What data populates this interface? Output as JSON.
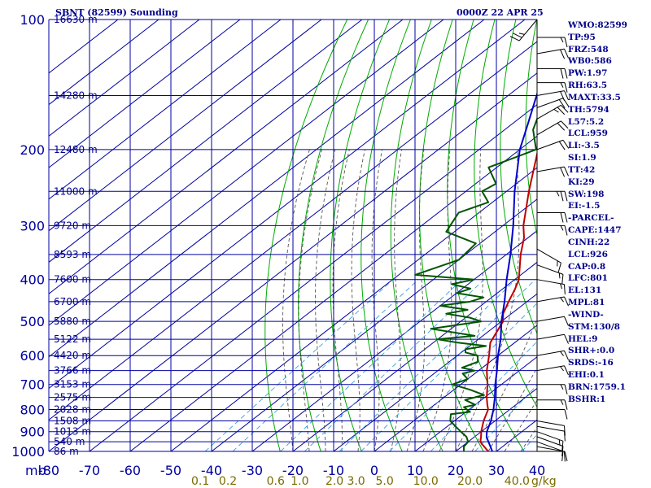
{
  "header": {
    "title": "SBNT (82599) Sounding",
    "timestamp": "0000Z 22 APR 25"
  },
  "indices": [
    "WMO:82599",
    "TP:95",
    "FRZ:548",
    "WB0:586",
    "PW:1.97",
    "RH:63.5",
    "MAXT:33.5",
    "TH:5794",
    "L57:5.2",
    "LCL:959",
    "LI:-3.5",
    "SI:1.9",
    "TT:42",
    "KI:29",
    "SW:198",
    "EI:-1.5",
    "-PARCEL-",
    "CAPE:1447",
    "CINH:22",
    "LCL:926",
    "CAP:0.8",
    "LFC:801",
    "EL:131",
    "MPL:81",
    "-WIND-",
    "STM:130/8",
    "HEL:9",
    "SHR+:0.0",
    "SRDS:-16",
    "EHI:0.1",
    "BRN:1759.1",
    "BSHR:1"
  ],
  "colors": {
    "grid": "#0000a0",
    "dry_adiabat": "#00aa00",
    "moist_adiabat": "#555555",
    "mixing_ratio": "#3aa0e0",
    "temperature": "#c00000",
    "dewpoint": "#005500",
    "parcel": "#0000cc",
    "text": "#00008b",
    "mixing_label": "#7a6a00",
    "wind": "#000000"
  },
  "chart_data": {
    "type": "line",
    "chart": "skew-T log-P",
    "y_axis": {
      "unit_label": "mb",
      "scale": "log",
      "ylim": [
        1000,
        100
      ],
      "ticks": [
        100,
        200,
        300,
        400,
        500,
        600,
        700,
        800,
        900,
        1000
      ],
      "tick_labels": [
        "100",
        "200",
        "300",
        "400",
        "500",
        "600",
        "700",
        "800",
        "900",
        "1000"
      ]
    },
    "x_axis": {
      "xlim": [
        -80,
        40
      ],
      "ticks": [
        -80,
        -70,
        -60,
        -50,
        -40,
        -30,
        -20,
        -10,
        0,
        10,
        20,
        30,
        40
      ],
      "tick_labels": [
        "-80",
        "-70",
        "-60",
        "-50",
        "-40",
        "-30",
        "-20",
        "-10",
        "0",
        "10",
        "20",
        "30",
        "40"
      ]
    },
    "height_labels": [
      {
        "p": 100,
        "text": "16630 m"
      },
      {
        "p": 150,
        "text": "14280 m"
      },
      {
        "p": 200,
        "text": "12480 m"
      },
      {
        "p": 250,
        "text": "11000 m"
      },
      {
        "p": 300,
        "text": "9720 m"
      },
      {
        "p": 350,
        "text": "8593 m"
      },
      {
        "p": 400,
        "text": "7600 m"
      },
      {
        "p": 450,
        "text": "6700 m"
      },
      {
        "p": 500,
        "text": "5880 m"
      },
      {
        "p": 550,
        "text": "5122 m"
      },
      {
        "p": 600,
        "text": "4420 m"
      },
      {
        "p": 650,
        "text": "3766 m"
      },
      {
        "p": 700,
        "text": "3153 m"
      },
      {
        "p": 750,
        "text": "2575 m"
      },
      {
        "p": 800,
        "text": "2028 m"
      },
      {
        "p": 850,
        "text": "1508 m"
      },
      {
        "p": 900,
        "text": "1013 m"
      },
      {
        "p": 950,
        "text": "540 m"
      },
      {
        "p": 1000,
        "text": "86 m"
      }
    ],
    "mixing_ratios": [
      {
        "w": 0.1,
        "label": "0.1"
      },
      {
        "w": 0.2,
        "label": "0.2"
      },
      {
        "w": 0.6,
        "label": "0.6"
      },
      {
        "w": 1.0,
        "label": "1.0"
      },
      {
        "w": 2.0,
        "label": "2.0"
      },
      {
        "w": 3.0,
        "label": "3.0"
      },
      {
        "w": 5.0,
        "label": "5.0"
      },
      {
        "w": 10.0,
        "label": "10.0"
      },
      {
        "w": 20.0,
        "label": "20.0"
      },
      {
        "w": 40.0,
        "label": "40.0"
      }
    ],
    "mixing_unit_label": "g/kg",
    "series": [
      {
        "key": "temperature",
        "points": [
          [
            1000,
            28.0
          ],
          [
            980,
            26.0
          ],
          [
            960,
            24.0
          ],
          [
            950,
            23.0
          ],
          [
            925,
            21.6
          ],
          [
            900,
            20.0
          ],
          [
            850,
            17.2
          ],
          [
            800,
            14.7
          ],
          [
            780,
            13.0
          ],
          [
            750,
            10.5
          ],
          [
            700,
            6.6
          ],
          [
            650,
            2.0
          ],
          [
            600,
            -2.2
          ],
          [
            560,
            -6.0
          ],
          [
            500,
            -9.6
          ],
          [
            480,
            -12.0
          ],
          [
            450,
            -14.5
          ],
          [
            420,
            -17.0
          ],
          [
            400,
            -19.0
          ],
          [
            350,
            -26.5
          ],
          [
            320,
            -31.0
          ],
          [
            300,
            -35.0
          ],
          [
            250,
            -44.5
          ],
          [
            200,
            -55.5
          ],
          [
            175,
            -62.0
          ],
          [
            150,
            -68.0
          ],
          [
            130,
            -74.0
          ],
          [
            115,
            -79.0
          ],
          [
            100,
            -82.0
          ]
        ]
      },
      {
        "key": "dewpoint",
        "points": [
          [
            1000,
            22.0
          ],
          [
            975,
            20.5
          ],
          [
            950,
            20.0
          ],
          [
            925,
            18.0
          ],
          [
            900,
            15.0
          ],
          [
            875,
            12.0
          ],
          [
            850,
            9.0
          ],
          [
            820,
            7.0
          ],
          [
            810,
            11.0
          ],
          [
            790,
            8.0
          ],
          [
            780,
            10.0
          ],
          [
            760,
            6.0
          ],
          [
            740,
            9.0
          ],
          [
            720,
            4.0
          ],
          [
            700,
            -2.0
          ],
          [
            680,
            0.0
          ],
          [
            660,
            -3.0
          ],
          [
            650,
            -1.0
          ],
          [
            640,
            -5.0
          ],
          [
            620,
            -3.0
          ],
          [
            600,
            -5.0
          ],
          [
            590,
            -9.0
          ],
          [
            580,
            -10.0
          ],
          [
            570,
            -6.0
          ],
          [
            560,
            -14.0
          ],
          [
            550,
            -20.0
          ],
          [
            540,
            -12.0
          ],
          [
            520,
            -25.0
          ],
          [
            500,
            -15.0
          ],
          [
            490,
            -19.0
          ],
          [
            480,
            -26.0
          ],
          [
            470,
            -22.0
          ],
          [
            460,
            -30.0
          ],
          [
            450,
            -24.0
          ],
          [
            440,
            -22.0
          ],
          [
            430,
            -30.0
          ],
          [
            420,
            -28.0
          ],
          [
            410,
            -34.0
          ],
          [
            400,
            -30.0
          ],
          [
            390,
            -46.0
          ],
          [
            360,
            -40.0
          ],
          [
            330,
            -41.0
          ],
          [
            310,
            -52.0
          ],
          [
            300,
            -53.0
          ],
          [
            280,
            -55.0
          ],
          [
            265,
            -51.0
          ],
          [
            250,
            -56.0
          ],
          [
            240,
            -55.0
          ],
          [
            220,
            -62.0
          ],
          [
            200,
            -56.0
          ],
          [
            180,
            -63.0
          ],
          [
            160,
            -68.0
          ],
          [
            145,
            -70.0
          ],
          [
            125,
            -79.0
          ],
          [
            100,
            -82.0
          ]
        ]
      },
      {
        "key": "parcel",
        "points": [
          [
            1000,
            29.0
          ],
          [
            950,
            25.0
          ],
          [
            926,
            23.0
          ],
          [
            900,
            21.4
          ],
          [
            850,
            19.0
          ],
          [
            800,
            16.0
          ],
          [
            750,
            12.5
          ],
          [
            700,
            8.5
          ],
          [
            650,
            4.5
          ],
          [
            600,
            0.0
          ],
          [
            550,
            -4.5
          ],
          [
            500,
            -10.0
          ],
          [
            450,
            -15.5
          ],
          [
            400,
            -22.0
          ],
          [
            350,
            -29.0
          ],
          [
            300,
            -37.5
          ],
          [
            250,
            -48.0
          ],
          [
            200,
            -60.0
          ],
          [
            175,
            -66.0
          ],
          [
            150,
            -73.0
          ],
          [
            131,
            -79.0
          ],
          [
            100,
            -86.0
          ]
        ]
      }
    ],
    "wind_barbs": [
      {
        "p": 1000,
        "dir": 90,
        "spd": 10
      },
      {
        "p": 975,
        "dir": 100,
        "spd": 10
      },
      {
        "p": 950,
        "dir": 110,
        "spd": 10
      },
      {
        "p": 925,
        "dir": 110,
        "spd": 10
      },
      {
        "p": 900,
        "dir": 110,
        "spd": 15
      },
      {
        "p": 875,
        "dir": 100,
        "spd": 10
      },
      {
        "p": 850,
        "dir": 100,
        "spd": 10
      },
      {
        "p": 800,
        "dir": 90,
        "spd": 10
      },
      {
        "p": 760,
        "dir": 90,
        "spd": 15
      },
      {
        "p": 700,
        "dir": 90,
        "spd": 15
      },
      {
        "p": 650,
        "dir": 80,
        "spd": 15
      },
      {
        "p": 600,
        "dir": 80,
        "spd": 15
      },
      {
        "p": 550,
        "dir": 80,
        "spd": 10
      },
      {
        "p": 500,
        "dir": 80,
        "spd": 10
      },
      {
        "p": 450,
        "dir": 80,
        "spd": 15
      },
      {
        "p": 400,
        "dir": 100,
        "spd": 15
      },
      {
        "p": 370,
        "dir": 110,
        "spd": 15
      },
      {
        "p": 340,
        "dir": 120,
        "spd": 15
      },
      {
        "p": 300,
        "dir": 90,
        "spd": 15
      },
      {
        "p": 280,
        "dir": 90,
        "spd": 20
      },
      {
        "p": 250,
        "dir": 90,
        "spd": 25
      },
      {
        "p": 225,
        "dir": 80,
        "spd": 20
      },
      {
        "p": 200,
        "dir": 70,
        "spd": 20
      },
      {
        "p": 185,
        "dir": 60,
        "spd": 20
      },
      {
        "p": 170,
        "dir": 60,
        "spd": 25
      },
      {
        "p": 160,
        "dir": 70,
        "spd": 20
      },
      {
        "p": 150,
        "dir": 80,
        "spd": 20
      },
      {
        "p": 140,
        "dir": 90,
        "spd": 15
      },
      {
        "p": 130,
        "dir": 90,
        "spd": 20
      },
      {
        "p": 120,
        "dir": 80,
        "spd": 20
      },
      {
        "p": 110,
        "dir": 90,
        "spd": 15
      },
      {
        "p": 100,
        "dir": 220,
        "spd": 25
      }
    ]
  }
}
